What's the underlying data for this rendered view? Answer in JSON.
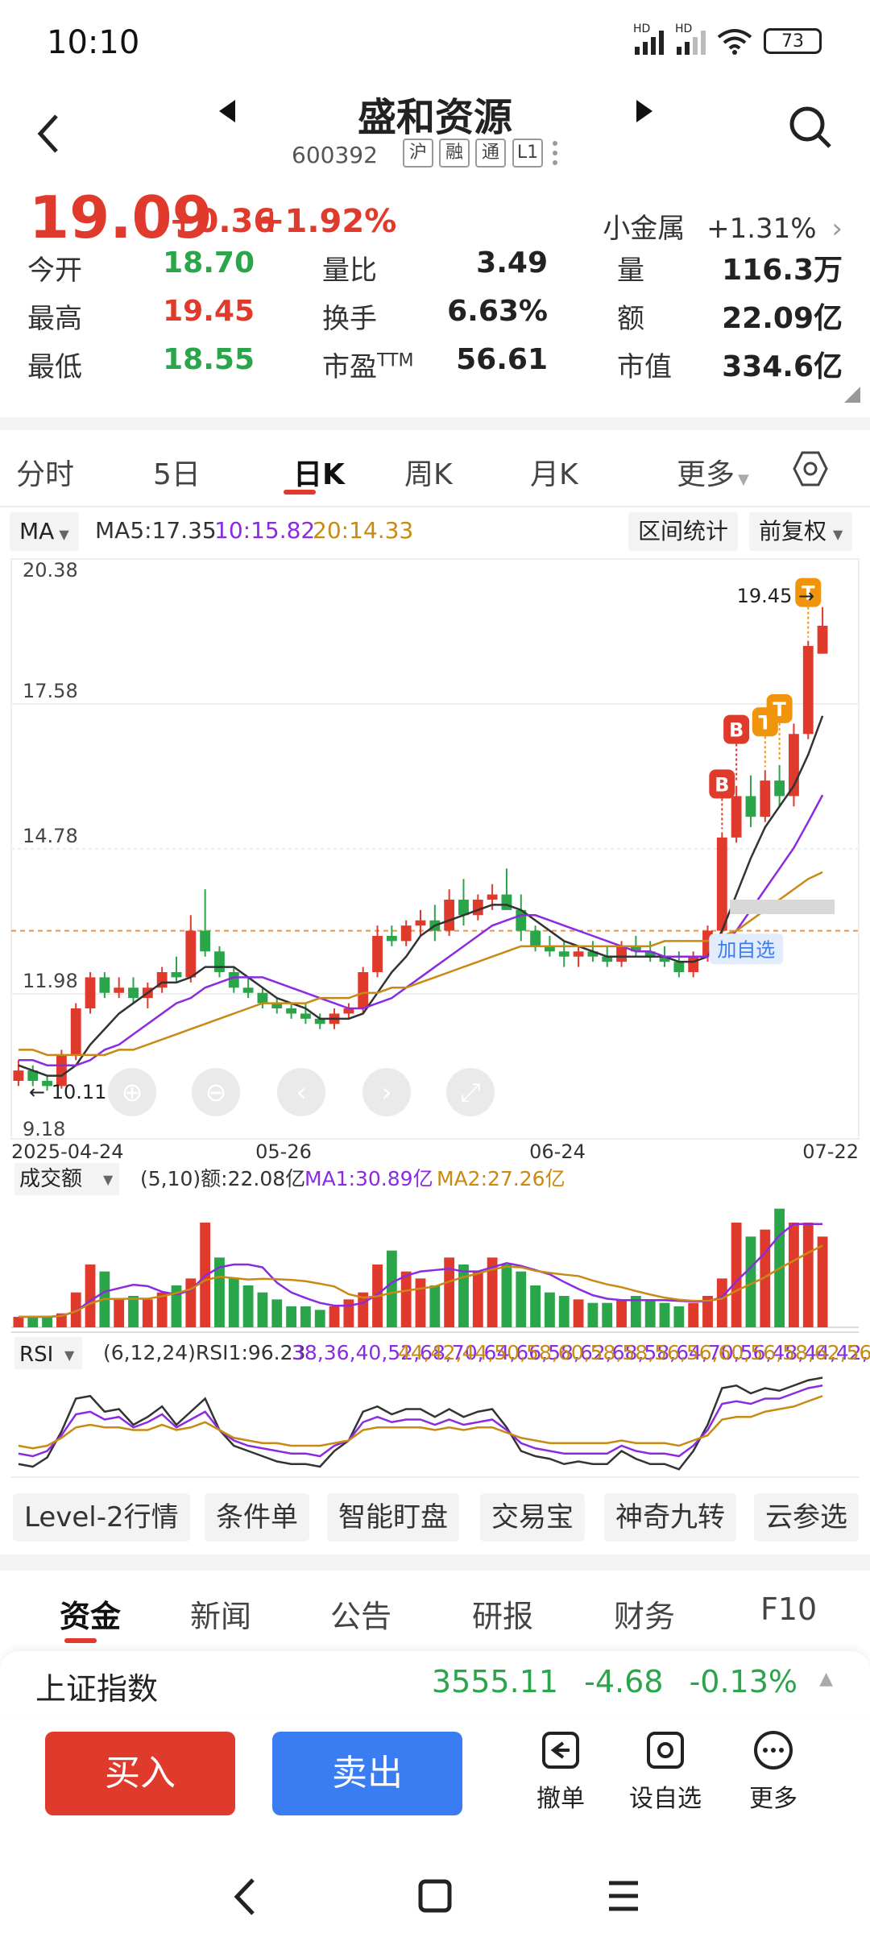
{
  "status": {
    "time": "10:10",
    "sig1": "HD",
    "sig2": "HD",
    "battery": "73"
  },
  "header": {
    "title": "盛和资源",
    "code": "600392",
    "tags": [
      "沪",
      "融",
      "通",
      "L1"
    ]
  },
  "quote": {
    "price": "19.09",
    "change": "+0.36",
    "change_pct": "+1.92%",
    "sector_name": "小金属",
    "sector_pct": "+1.31%",
    "rows": [
      [
        {
          "label": "今开",
          "value": "18.70",
          "color": "green"
        },
        {
          "label": "量比",
          "value": "3.49",
          "color": "blk"
        },
        {
          "label": "量",
          "value": "116.3万",
          "color": "blk"
        }
      ],
      [
        {
          "label": "最高",
          "value": "19.45",
          "color": "red"
        },
        {
          "label": "换手",
          "value": "6.63%",
          "color": "blk"
        },
        {
          "label": "额",
          "value": "22.09亿",
          "color": "blk"
        }
      ],
      [
        {
          "label": "最低",
          "value": "18.55",
          "color": "green"
        },
        {
          "label": "市盈",
          "value": "56.61",
          "color": "blk"
        },
        {
          "label": "市值",
          "value": "334.6亿",
          "color": "blk"
        }
      ]
    ],
    "ttm": "TTM"
  },
  "chart_tabs": [
    "分时",
    "5日",
    "日K",
    "周K",
    "月K",
    "更多"
  ],
  "toolbar": {
    "ma_select": "MA",
    "ma5": "MA5:17.35",
    "ma10": "10:15.82",
    "ma20": "20:14.33",
    "range_stat": "区间统计",
    "adjust": "前复权"
  },
  "chart_data": {
    "type": "candlestick",
    "ylim": [
      9.18,
      20.38
    ],
    "y_ticks": [
      "20.38",
      "17.58",
      "14.78",
      "11.98",
      "9.18"
    ],
    "x_ticks": [
      "2025-04-24",
      "05-26",
      "06-24",
      "07-22"
    ],
    "max_label": "19.45 →",
    "min_label": "← 10.11",
    "watch_label": "加自选",
    "candles": [
      [
        10.3,
        10.7,
        10.2,
        10.5
      ],
      [
        10.5,
        10.6,
        10.2,
        10.3
      ],
      [
        10.3,
        10.4,
        10.11,
        10.2
      ],
      [
        10.2,
        10.9,
        10.15,
        10.8
      ],
      [
        10.8,
        11.8,
        10.7,
        11.7
      ],
      [
        11.7,
        12.4,
        11.6,
        12.3
      ],
      [
        12.3,
        12.4,
        11.9,
        12.0
      ],
      [
        12.0,
        12.3,
        11.9,
        12.1
      ],
      [
        12.1,
        12.3,
        11.8,
        11.9
      ],
      [
        11.9,
        12.2,
        11.7,
        12.1
      ],
      [
        12.1,
        12.5,
        12.0,
        12.4
      ],
      [
        12.4,
        12.7,
        12.2,
        12.3
      ],
      [
        12.3,
        13.5,
        12.2,
        13.2
      ],
      [
        13.2,
        14.0,
        12.7,
        12.8
      ],
      [
        12.8,
        12.9,
        12.3,
        12.4
      ],
      [
        12.4,
        12.5,
        12.0,
        12.1
      ],
      [
        12.1,
        12.3,
        11.9,
        12.0
      ],
      [
        12.0,
        12.1,
        11.7,
        11.8
      ],
      [
        11.8,
        11.9,
        11.6,
        11.7
      ],
      [
        11.7,
        11.8,
        11.5,
        11.6
      ],
      [
        11.6,
        11.8,
        11.4,
        11.5
      ],
      [
        11.5,
        11.6,
        11.3,
        11.4
      ],
      [
        11.4,
        11.7,
        11.3,
        11.6
      ],
      [
        11.6,
        11.8,
        11.5,
        11.7
      ],
      [
        11.7,
        12.5,
        11.6,
        12.4
      ],
      [
        12.4,
        13.3,
        12.3,
        13.1
      ],
      [
        13.1,
        13.3,
        12.9,
        13.0
      ],
      [
        13.0,
        13.4,
        12.9,
        13.3
      ],
      [
        13.3,
        13.6,
        13.1,
        13.4
      ],
      [
        13.4,
        13.7,
        13.0,
        13.2
      ],
      [
        13.2,
        14.0,
        13.1,
        13.8
      ],
      [
        13.8,
        14.2,
        13.3,
        13.5
      ],
      [
        13.5,
        13.9,
        13.4,
        13.8
      ],
      [
        13.8,
        14.1,
        13.6,
        13.9
      ],
      [
        13.9,
        14.4,
        13.7,
        13.6
      ],
      [
        13.6,
        13.9,
        13.0,
        13.2
      ],
      [
        13.2,
        13.3,
        12.8,
        12.9
      ],
      [
        12.9,
        13.1,
        12.7,
        12.8
      ],
      [
        12.8,
        13.0,
        12.5,
        12.7
      ],
      [
        12.7,
        12.9,
        12.5,
        12.8
      ],
      [
        12.8,
        13.0,
        12.6,
        12.7
      ],
      [
        12.7,
        12.9,
        12.5,
        12.6
      ],
      [
        12.6,
        13.0,
        12.5,
        12.9
      ],
      [
        12.9,
        13.1,
        12.7,
        12.8
      ],
      [
        12.8,
        13.0,
        12.6,
        12.7
      ],
      [
        12.7,
        12.9,
        12.5,
        12.6
      ],
      [
        12.6,
        12.8,
        12.3,
        12.4
      ],
      [
        12.4,
        12.8,
        12.3,
        12.7
      ],
      [
        12.7,
        13.3,
        12.6,
        13.2
      ],
      [
        13.2,
        15.1,
        13.1,
        15.0
      ],
      [
        15.0,
        16.0,
        14.9,
        15.8
      ],
      [
        15.8,
        16.2,
        15.2,
        15.4
      ],
      [
        15.4,
        16.3,
        15.3,
        16.1
      ],
      [
        16.1,
        16.4,
        15.6,
        15.8
      ],
      [
        15.8,
        17.2,
        15.6,
        17.0
      ],
      [
        17.0,
        18.8,
        16.9,
        18.7
      ],
      [
        18.55,
        19.45,
        18.55,
        19.09
      ]
    ],
    "ma5": [
      10.6,
      10.5,
      10.4,
      10.4,
      10.6,
      11.0,
      11.3,
      11.6,
      11.8,
      12.0,
      12.2,
      12.2,
      12.3,
      12.5,
      12.5,
      12.5,
      12.3,
      12.1,
      11.9,
      11.8,
      11.7,
      11.5,
      11.5,
      11.5,
      11.6,
      12.0,
      12.4,
      12.7,
      13.1,
      13.3,
      13.4,
      13.5,
      13.6,
      13.7,
      13.7,
      13.6,
      13.4,
      13.2,
      13.0,
      12.9,
      12.8,
      12.7,
      12.7,
      12.7,
      12.7,
      12.7,
      12.6,
      12.6,
      12.7,
      13.2,
      13.9,
      14.6,
      15.2,
      15.6,
      16.0,
      16.6,
      17.35
    ],
    "ma10": [
      10.7,
      10.7,
      10.6,
      10.6,
      10.6,
      10.7,
      10.9,
      11.0,
      11.2,
      11.4,
      11.6,
      11.8,
      11.9,
      12.1,
      12.2,
      12.3,
      12.3,
      12.3,
      12.2,
      12.1,
      12.0,
      11.9,
      11.8,
      11.7,
      11.7,
      11.8,
      11.9,
      12.1,
      12.3,
      12.5,
      12.7,
      12.9,
      13.1,
      13.3,
      13.4,
      13.5,
      13.5,
      13.4,
      13.3,
      13.2,
      13.1,
      13.0,
      12.9,
      12.8,
      12.8,
      12.7,
      12.7,
      12.7,
      12.7,
      12.9,
      13.2,
      13.6,
      14.0,
      14.4,
      14.8,
      15.3,
      15.82
    ],
    "ma20": [
      10.9,
      10.9,
      10.8,
      10.8,
      10.8,
      10.8,
      10.8,
      10.9,
      10.9,
      11.0,
      11.1,
      11.2,
      11.3,
      11.4,
      11.5,
      11.6,
      11.7,
      11.8,
      11.8,
      11.8,
      11.8,
      11.9,
      11.9,
      11.9,
      12.0,
      12.0,
      12.1,
      12.1,
      12.2,
      12.3,
      12.4,
      12.5,
      12.6,
      12.7,
      12.8,
      12.9,
      12.9,
      12.9,
      12.9,
      12.9,
      12.9,
      12.9,
      12.9,
      12.9,
      12.9,
      13.0,
      13.0,
      13.0,
      13.0,
      13.1,
      13.2,
      13.4,
      13.6,
      13.8,
      14.0,
      14.2,
      14.33
    ],
    "markers": [
      {
        "label": "B",
        "index": 49
      },
      {
        "label": "B",
        "index": 50
      },
      {
        "label": "T",
        "index": 52
      },
      {
        "label": "T",
        "index": 53
      },
      {
        "label": "T",
        "index": 55
      }
    ],
    "volume": {
      "select": "成交额",
      "info": "(5,10)额:22.08亿",
      "ma1": "MA1:30.89亿",
      "ma2": "MA2:27.26亿",
      "values": [
        3,
        3,
        3,
        4,
        10,
        18,
        16,
        8,
        9,
        8,
        10,
        12,
        14,
        30,
        20,
        14,
        12,
        10,
        8,
        6,
        6,
        5,
        6,
        8,
        10,
        18,
        22,
        16,
        14,
        12,
        20,
        18,
        16,
        20,
        18,
        16,
        12,
        10,
        9,
        8,
        7,
        7,
        8,
        9,
        8,
        7,
        6,
        7,
        9,
        14,
        30,
        26,
        28,
        34,
        30,
        30,
        26
      ],
      "dir": [
        1,
        -1,
        -1,
        1,
        1,
        1,
        -1,
        1,
        -1,
        1,
        1,
        -1,
        1,
        1,
        -1,
        -1,
        -1,
        -1,
        -1,
        -1,
        -1,
        -1,
        1,
        1,
        1,
        1,
        -1,
        1,
        1,
        -1,
        1,
        -1,
        1,
        1,
        -1,
        -1,
        -1,
        -1,
        -1,
        1,
        -1,
        -1,
        1,
        -1,
        -1,
        -1,
        -1,
        1,
        1,
        1,
        1,
        -1,
        1,
        -1,
        1,
        1,
        1
      ]
    },
    "rsi": {
      "select": "RSI",
      "info": "(6,12,24)RSI1:96.23",
      "rsi2": [
        38,
        36,
        40,
        52,
        68,
        70,
        64,
        66,
        58,
        62,
        68,
        58,
        64,
        70,
        56,
        48,
        44,
        42,
        40,
        38,
        38,
        36,
        44,
        48,
        62,
        66,
        62,
        64,
        64,
        60,
        64,
        60,
        62,
        64,
        56,
        46,
        42,
        40,
        38,
        38,
        38,
        38,
        44,
        40,
        38,
        38,
        36,
        44,
        56,
        76,
        78,
        76,
        80,
        80,
        84,
        88,
        90
      ],
      "rsi3": [
        44,
        42,
        44,
        50,
        58,
        60,
        58,
        58,
        56,
        56,
        60,
        56,
        58,
        62,
        56,
        50,
        48,
        46,
        46,
        44,
        44,
        44,
        46,
        48,
        56,
        58,
        58,
        58,
        58,
        56,
        58,
        56,
        58,
        58,
        54,
        50,
        48,
        46,
        46,
        46,
        46,
        46,
        48,
        46,
        46,
        46,
        44,
        48,
        52,
        64,
        66,
        66,
        70,
        72,
        74,
        78,
        82
      ],
      "rsi1": [
        30,
        28,
        35,
        55,
        80,
        82,
        70,
        72,
        60,
        66,
        74,
        60,
        70,
        80,
        56,
        44,
        40,
        36,
        32,
        30,
        30,
        28,
        40,
        48,
        70,
        74,
        68,
        72,
        72,
        66,
        72,
        66,
        70,
        72,
        58,
        40,
        36,
        34,
        30,
        32,
        30,
        30,
        40,
        34,
        30,
        30,
        26,
        40,
        60,
        88,
        90,
        84,
        88,
        86,
        90,
        94,
        96
      ]
    }
  },
  "feature_tags": [
    "Level-2行情",
    "条件单",
    "智能盯盘",
    "交易宝",
    "神奇九转",
    "云参选"
  ],
  "info_tabs": [
    "资金",
    "新闻",
    "公告",
    "研报",
    "财务",
    "F10"
  ],
  "index": {
    "name": "上证指数",
    "value": "3555.11",
    "change": "-4.68",
    "pct": "-0.13%"
  },
  "trade": {
    "buy": "买入",
    "sell": "卖出",
    "cancel": "撤单",
    "watch": "设自选",
    "more": "更多"
  }
}
